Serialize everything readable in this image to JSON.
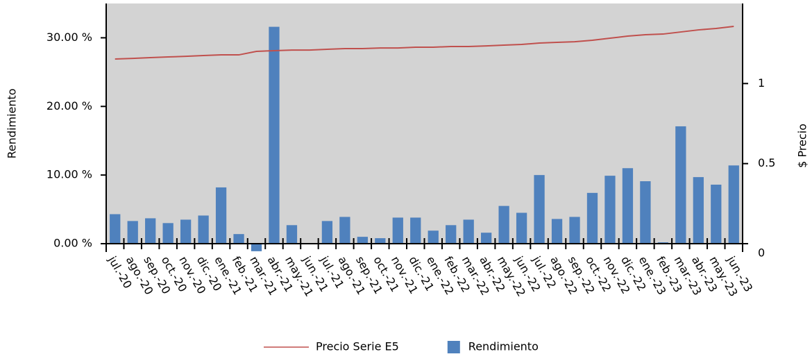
{
  "chart_data": {
    "type": "combo",
    "y_label": "Rendimiento",
    "y2_label": "$ Precio",
    "categories": [
      "jul.-20",
      "ago.-20",
      "sep.-20",
      "oct.-20",
      "nov.-20",
      "dic.-20",
      "ene.-21",
      "feb.-21",
      "mar.-21",
      "abr.-21",
      "may.-21",
      "jun.-21",
      "jul.-21",
      "ago.-21",
      "sep.-21",
      "oct.-21",
      "nov.-21",
      "dic.-21",
      "ene.-22",
      "feb.-22",
      "mar.-22",
      "abr.-22",
      "may.-22",
      "jun.-22",
      "jul.-22",
      "ago.-22",
      "sep.-22",
      "oct.-22",
      "nov.-22",
      "dic.-22",
      "ene.-23",
      "feb.-23",
      "mar.-23",
      "abr.-23",
      "may.-23",
      "jun.-23"
    ],
    "series": [
      {
        "name": "Precio Serie E5",
        "type": "line",
        "axis": "y2",
        "color": "#c0504d",
        "values": [
          1.153,
          1.157,
          1.162,
          1.166,
          1.17,
          1.175,
          1.179,
          1.179,
          1.201,
          1.205,
          1.209,
          1.209,
          1.214,
          1.218,
          1.218,
          1.222,
          1.222,
          1.227,
          1.227,
          1.231,
          1.231,
          1.235,
          1.24,
          1.244,
          1.253,
          1.257,
          1.261,
          1.27,
          1.283,
          1.296,
          1.305,
          1.309,
          1.322,
          1.335,
          1.344,
          1.357
        ]
      },
      {
        "name": "Rendimiento",
        "type": "bar",
        "color": "#4f81bd",
        "values": [
          4.3,
          3.3,
          3.7,
          3.0,
          3.5,
          4.1,
          8.2,
          1.4,
          -1.1,
          31.6,
          2.7,
          -0.1,
          3.3,
          3.9,
          1.0,
          0.8,
          3.8,
          3.8,
          1.9,
          2.7,
          3.5,
          1.6,
          5.5,
          4.5,
          10.0,
          3.6,
          3.9,
          7.4,
          9.9,
          11.0,
          9.1,
          0.2,
          17.1,
          9.7,
          8.6,
          11.4
        ]
      }
    ],
    "ylim": [
      0,
      35
    ],
    "yticks": [
      {
        "value": 0,
        "label": "0.00 %"
      },
      {
        "value": 10,
        "label": "10.00 %"
      },
      {
        "value": 20,
        "label": "20.00 %"
      },
      {
        "value": 30,
        "label": "30.00 %"
      }
    ],
    "y2lim": [
      0,
      1.5
    ],
    "y2ticks": [
      0,
      0.5,
      1
    ],
    "plot_background": "#d3d3d3"
  }
}
